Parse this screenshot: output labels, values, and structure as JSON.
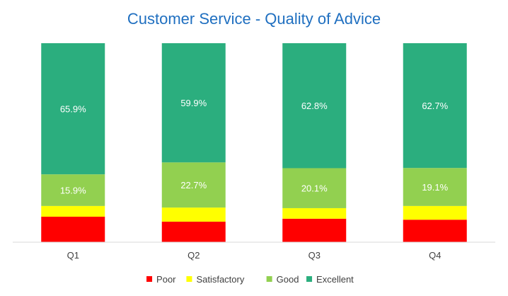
{
  "chart_data": {
    "type": "bar",
    "stacked": true,
    "title": "Customer Service - Quality of Advice",
    "categories": [
      "Q1",
      "Q2",
      "Q3",
      "Q4"
    ],
    "xlabel": "",
    "ylabel": "",
    "ylim": [
      0,
      100
    ],
    "grid": false,
    "legend_position": "bottom",
    "series": [
      {
        "name": "Poor",
        "color": "#FF0000",
        "values": [
          12.8,
          10.3,
          11.8,
          11.3
        ],
        "labels": [
          "",
          "",
          "",
          ""
        ]
      },
      {
        "name": "Satisfactory",
        "color": "#FFFF00",
        "values": [
          5.4,
          7.1,
          5.3,
          6.9
        ],
        "labels": [
          "",
          "",
          "",
          ""
        ]
      },
      {
        "name": "Good",
        "color": "#92D050",
        "values": [
          15.9,
          22.7,
          20.1,
          19.1
        ],
        "labels": [
          "15.9%",
          "22.7%",
          "20.1%",
          "19.1%"
        ]
      },
      {
        "name": "Excellent",
        "color": "#2BAE7E",
        "values": [
          65.9,
          59.9,
          62.8,
          62.7
        ],
        "labels": [
          "65.9%",
          "59.9%",
          "62.8%",
          "62.7%"
        ]
      }
    ]
  }
}
